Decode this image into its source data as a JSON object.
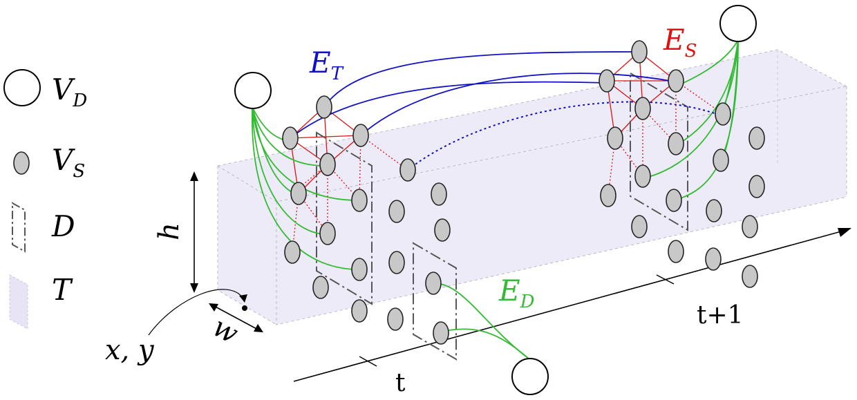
{
  "legend": {
    "items": [
      {
        "symbol": "detection-node",
        "base": "V",
        "sub": "D"
      },
      {
        "symbol": "spatial-node",
        "base": "V",
        "sub": "S"
      },
      {
        "symbol": "detection-box",
        "base": "D",
        "sub": ""
      },
      {
        "symbol": "tracklet-volume",
        "base": "T",
        "sub": ""
      }
    ]
  },
  "edges": {
    "temporal": {
      "base": "E",
      "sub": "T",
      "color": "#1010c8"
    },
    "spatial": {
      "base": "E",
      "sub": "S",
      "color": "#e01010"
    },
    "detection": {
      "base": "E",
      "sub": "D",
      "color": "#33bb33"
    }
  },
  "labels": {
    "height": "h",
    "width": "w",
    "position": "x, y",
    "time_t": "t",
    "time_t1": "t+1"
  },
  "colors": {
    "node_fill": "#c8c8c8",
    "volume_fill": "#e8e4f6",
    "box_stroke": "#555555"
  }
}
